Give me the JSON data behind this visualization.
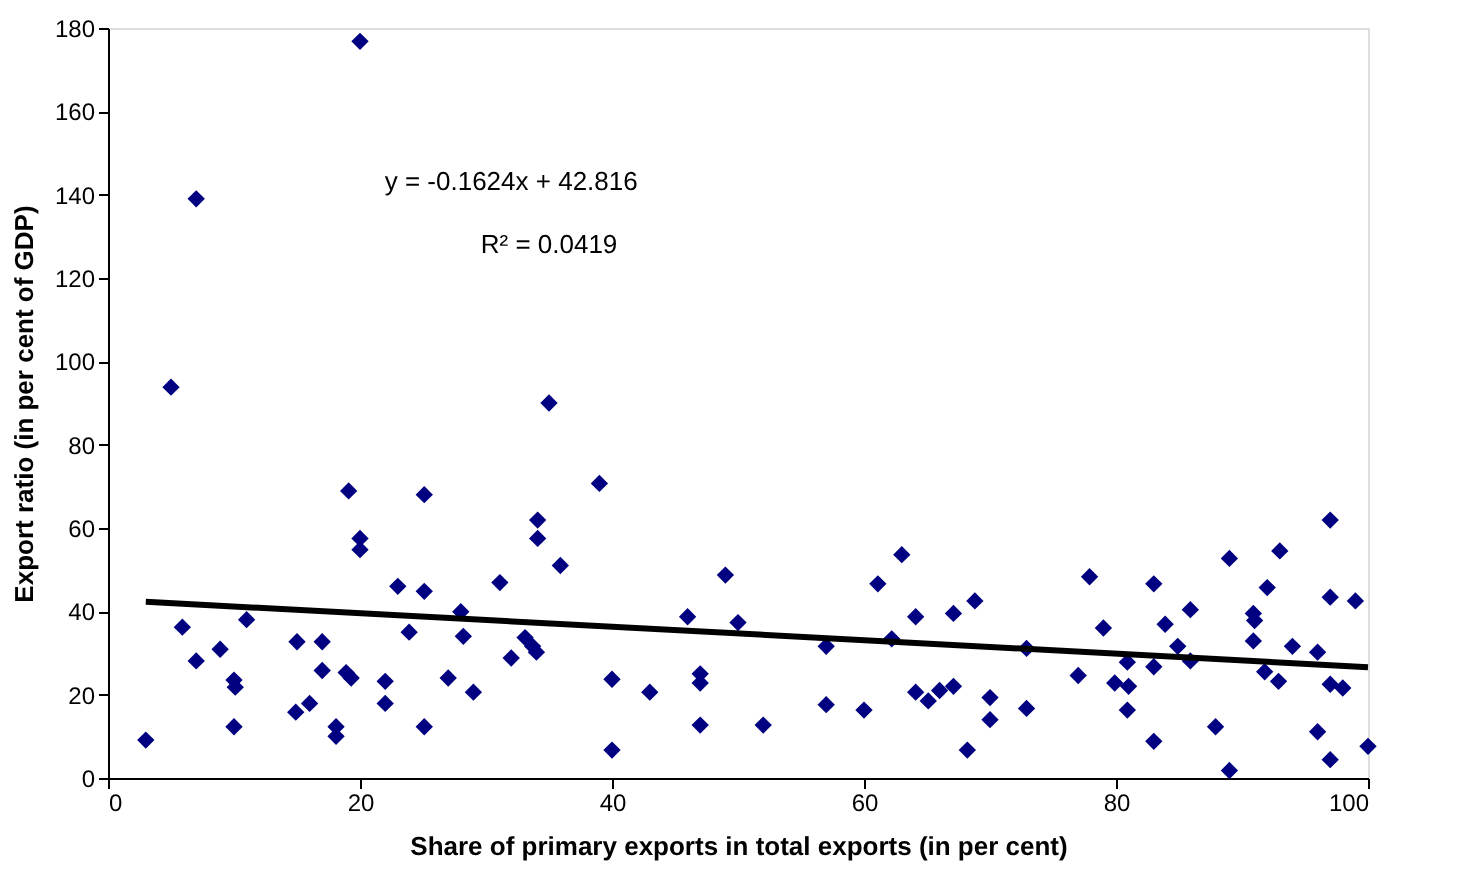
{
  "chart_data": {
    "type": "scatter",
    "xlabel": "Share of primary exports in total exports (in per cent)",
    "ylabel": "Export ratio (in per cent of GDP)",
    "xlim": [
      0,
      100
    ],
    "xticks": [
      0,
      20,
      40,
      60,
      80,
      100
    ],
    "ylim": [
      0,
      180
    ],
    "yticks": [
      0,
      20,
      40,
      60,
      80,
      100,
      120,
      140,
      160,
      180
    ],
    "grid": false,
    "marker": "diamond",
    "annotations": [
      "y = -0.1624x + 42.816",
      "R² = 0.0419"
    ],
    "series": [
      {
        "color": "#000080",
        "x": [
          3,
          5,
          5.9,
          7,
          7,
          8.9,
          10,
          10.1,
          10,
          11,
          15,
          14.9,
          16,
          17,
          17,
          18.1,
          18.1,
          19.1,
          18.9,
          19.3,
          20,
          20,
          20,
          22,
          22,
          23,
          23.9,
          25.1,
          25.1,
          25.1,
          27,
          28,
          28.2,
          29,
          31.1,
          32,
          33.1,
          34,
          34.1,
          34.1,
          35,
          35.9,
          39,
          33.7,
          40,
          40,
          43,
          46,
          47,
          47,
          47,
          49,
          50,
          52,
          57,
          57,
          60,
          61.1,
          62.2,
          63,
          64.1,
          64.1,
          65.1,
          66,
          67.1,
          67.1,
          68.2,
          68.8,
          70,
          70,
          72.9,
          72.9,
          77,
          77.9,
          79,
          80.9,
          79.9,
          81,
          80.9,
          83,
          83,
          83.9,
          83,
          84.9,
          85.9,
          85.9,
          87.9,
          89,
          89,
          90.9,
          91,
          90.9,
          92,
          91.8,
          92.9,
          93,
          94,
          96,
          96,
          97,
          97,
          97,
          97,
          98,
          99,
          100
        ],
        "values": [
          9.1,
          93.8,
          36.2,
          139,
          28.1,
          30.9,
          23.5,
          21.8,
          12.3,
          38,
          32.7,
          15.8,
          17.9,
          32.7,
          25.8,
          12.3,
          10,
          68.9,
          25.3,
          24,
          57.5,
          54.8,
          176.8,
          23.2,
          17.9,
          46,
          35,
          68,
          44.8,
          12.3,
          24,
          39.9,
          34,
          20.6,
          46.9,
          28.8,
          33.7,
          30.2,
          61.9,
          57.5,
          90,
          51,
          70.7,
          31.6,
          23.7,
          6.7,
          20.6,
          38.7,
          25,
          22.8,
          12.7,
          48.7,
          37.3,
          12.7,
          31.6,
          17.6,
          16.3,
          46.6,
          33.4,
          53.6,
          38.7,
          20.6,
          18.5,
          21,
          22,
          39.5,
          6.7,
          42.5,
          19.3,
          14,
          31.1,
          16.7,
          24.6,
          48.3,
          36,
          27.8,
          22.8,
          22,
          16.3,
          46.6,
          8.8,
          36.9,
          26.7,
          31.6,
          40.4,
          28.1,
          12.3,
          52.7,
          1.8,
          39.5,
          37.8,
          32.9,
          45.7,
          25.5,
          23.2,
          54.5,
          31.6,
          30.2,
          11.1,
          61.9,
          43.4,
          22.5,
          4.4,
          21.6,
          42.5,
          7.6
        ]
      },
      {
        "type": "line",
        "color": "#000000",
        "marker": "none",
        "x": [
          3,
          100
        ],
        "values": [
          42.3,
          26.6
        ]
      }
    ]
  }
}
